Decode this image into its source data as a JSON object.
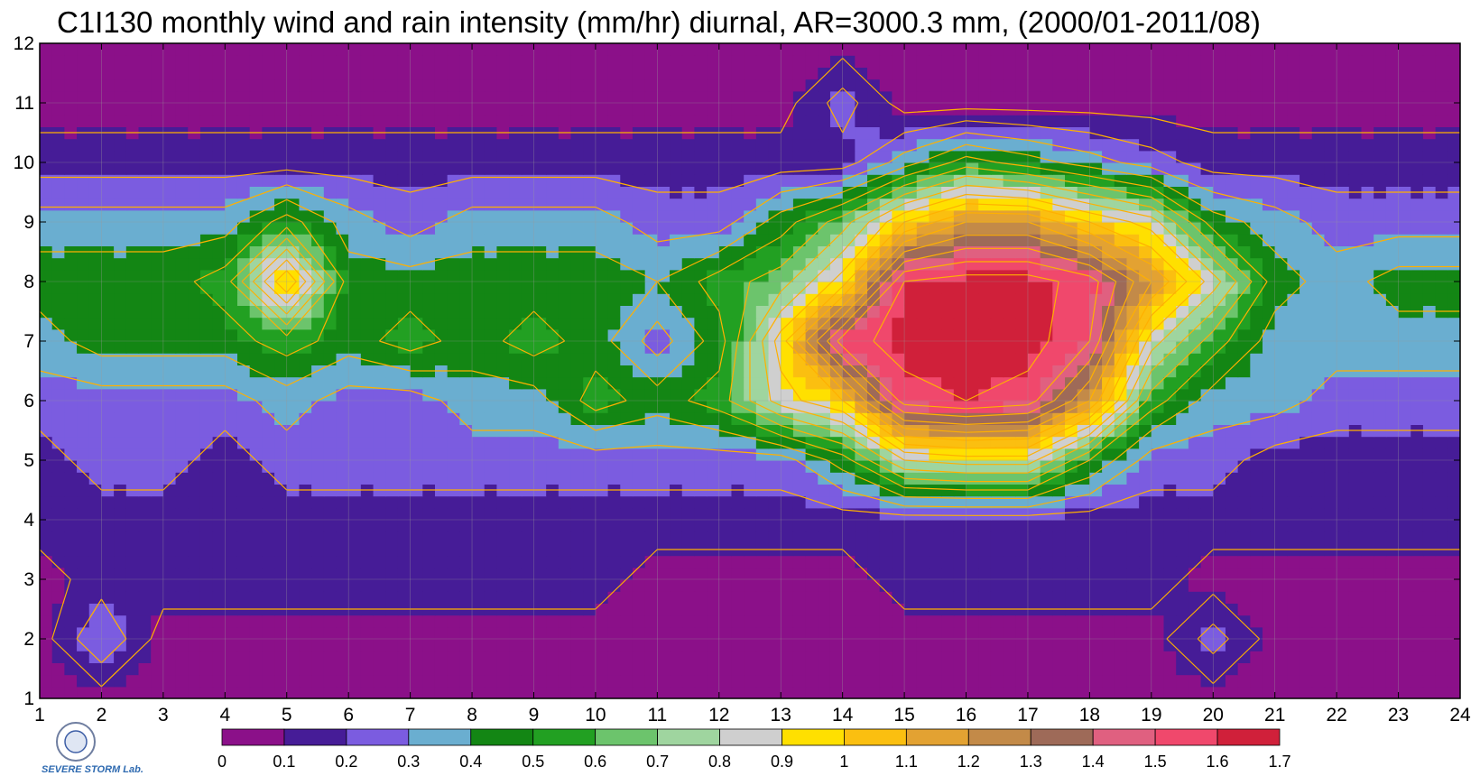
{
  "chart_data": {
    "type": "heatmap",
    "title": "C1I130 monthly wind and rain intensity (mm/hr) diurnal, AR=3000.3 mm, (2000/01-2011/08)",
    "xlabel": "",
    "ylabel": "",
    "x_ticks": [
      "1",
      "2",
      "3",
      "4",
      "5",
      "6",
      "7",
      "8",
      "9",
      "10",
      "11",
      "12",
      "13",
      "14",
      "15",
      "16",
      "17",
      "18",
      "19",
      "20",
      "21",
      "22",
      "23",
      "24"
    ],
    "y_ticks": [
      "1",
      "2",
      "3",
      "4",
      "5",
      "6",
      "7",
      "8",
      "9",
      "10",
      "11",
      "12"
    ],
    "xlim": [
      1,
      24
    ],
    "ylim": [
      1,
      12
    ],
    "grid": true,
    "colorbar": {
      "position": "bottom",
      "levels": [
        "0",
        "0.1",
        "0.2",
        "0.3",
        "0.4",
        "0.5",
        "0.6",
        "0.7",
        "0.8",
        "0.9",
        "1",
        "1.1",
        "1.2",
        "1.3",
        "1.4",
        "1.5",
        "1.6",
        "1.7"
      ],
      "colors": [
        "#8b1089",
        "#461c97",
        "#7b5ce0",
        "#6aaed0",
        "#138614",
        "#22a022",
        "#6cc46c",
        "#9fd59f",
        "#cfcfcf",
        "#ffe000",
        "#fbbf10",
        "#e3a232",
        "#c38a48",
        "#9e6a58",
        "#e06080",
        "#f0486c",
        "#d0203a"
      ]
    },
    "contour_color": "#ffb000",
    "x": [
      1,
      2,
      3,
      4,
      5,
      6,
      7,
      8,
      9,
      10,
      11,
      12,
      13,
      14,
      15,
      16,
      17,
      18,
      19,
      20,
      21,
      22,
      23,
      24
    ],
    "y": [
      1,
      2,
      3,
      4,
      5,
      6,
      7,
      8,
      9,
      10,
      11,
      12
    ],
    "z": [
      [
        0.05,
        0.05,
        0.05,
        0.05,
        0.05,
        0.05,
        0.05,
        0.05,
        0.05,
        0.05,
        0.05,
        0.05,
        0.05,
        0.05,
        0.05,
        0.05,
        0.05,
        0.05,
        0.05,
        0.05,
        0.05,
        0.05,
        0.05,
        0.05
      ],
      [
        0.05,
        0.3,
        0.05,
        0.05,
        0.05,
        0.05,
        0.05,
        0.05,
        0.05,
        0.05,
        0.05,
        0.05,
        0.05,
        0.05,
        0.05,
        0.05,
        0.05,
        0.05,
        0.05,
        0.25,
        0.05,
        0.05,
        0.05,
        0.05
      ],
      [
        0.05,
        0.15,
        0.15,
        0.15,
        0.15,
        0.15,
        0.15,
        0.15,
        0.15,
        0.15,
        0.05,
        0.05,
        0.05,
        0.05,
        0.15,
        0.15,
        0.15,
        0.15,
        0.15,
        0.05,
        0.05,
        0.05,
        0.05,
        0.05
      ],
      [
        0.15,
        0.15,
        0.15,
        0.15,
        0.15,
        0.15,
        0.15,
        0.15,
        0.15,
        0.15,
        0.15,
        0.15,
        0.15,
        0.15,
        0.15,
        0.15,
        0.15,
        0.15,
        0.15,
        0.15,
        0.15,
        0.15,
        0.15,
        0.15
      ],
      [
        0.15,
        0.25,
        0.25,
        0.15,
        0.25,
        0.25,
        0.25,
        0.25,
        0.25,
        0.25,
        0.25,
        0.25,
        0.25,
        0.45,
        0.8,
        0.85,
        0.85,
        0.5,
        0.25,
        0.25,
        0.15,
        0.15,
        0.15,
        0.15
      ],
      [
        0.25,
        0.25,
        0.25,
        0.25,
        0.35,
        0.25,
        0.25,
        0.35,
        0.35,
        0.55,
        0.45,
        0.55,
        0.85,
        1.0,
        1.55,
        1.6,
        1.55,
        1.2,
        0.55,
        0.35,
        0.35,
        0.25,
        0.25,
        0.25
      ],
      [
        0.35,
        0.45,
        0.45,
        0.45,
        0.55,
        0.45,
        0.55,
        0.45,
        0.55,
        0.45,
        0.25,
        0.45,
        0.95,
        1.55,
        1.65,
        1.65,
        1.65,
        1.5,
        0.85,
        0.55,
        0.35,
        0.35,
        0.35,
        0.35
      ],
      [
        0.45,
        0.45,
        0.45,
        0.55,
        1.1,
        0.45,
        0.45,
        0.45,
        0.45,
        0.45,
        0.4,
        0.55,
        0.65,
        0.95,
        1.6,
        1.65,
        1.65,
        1.55,
        1.2,
        0.85,
        0.45,
        0.35,
        0.45,
        0.45
      ],
      [
        0.35,
        0.35,
        0.35,
        0.35,
        0.55,
        0.35,
        0.25,
        0.35,
        0.35,
        0.35,
        0.25,
        0.25,
        0.45,
        0.65,
        1.0,
        1.2,
        1.2,
        1.0,
        0.85,
        0.45,
        0.35,
        0.25,
        0.25,
        0.25
      ],
      [
        0.15,
        0.15,
        0.15,
        0.15,
        0.15,
        0.15,
        0.15,
        0.15,
        0.15,
        0.15,
        0.15,
        0.15,
        0.15,
        0.15,
        0.35,
        0.55,
        0.45,
        0.35,
        0.25,
        0.15,
        0.15,
        0.15,
        0.15,
        0.15
      ],
      [
        0.05,
        0.05,
        0.05,
        0.05,
        0.05,
        0.05,
        0.05,
        0.05,
        0.05,
        0.05,
        0.05,
        0.05,
        0.05,
        0.25,
        0.05,
        0.05,
        0.05,
        0.05,
        0.05,
        0.05,
        0.05,
        0.05,
        0.05,
        0.05
      ],
      [
        0.05,
        0.05,
        0.05,
        0.05,
        0.05,
        0.05,
        0.05,
        0.05,
        0.05,
        0.05,
        0.05,
        0.05,
        0.05,
        0.05,
        0.05,
        0.05,
        0.05,
        0.05,
        0.05,
        0.05,
        0.05,
        0.05,
        0.05,
        0.05
      ]
    ]
  },
  "logo": {
    "text": "SEVERE STORM Lab."
  }
}
